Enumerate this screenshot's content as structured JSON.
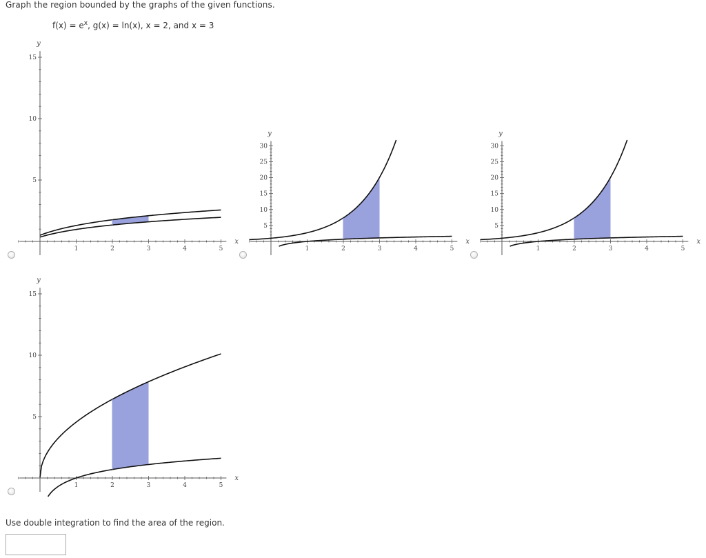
{
  "question": {
    "instruction": "Graph the region bounded by the graphs of the given functions.",
    "functions_f": "f(x) = e",
    "functions_exp": "x",
    "functions_rest": ", g(x) = ln(x), x = 2, and x = 3"
  },
  "graph_labels": {
    "x_axis": "x",
    "y_axis": "y"
  },
  "options": [
    {
      "selected": false,
      "curves": [
        "sqrt(x)+ln(x)",
        "ln(x)"
      ],
      "region_x": [
        2,
        3
      ],
      "x_ticks": [
        "1",
        "2",
        "3",
        "4",
        "5"
      ],
      "y_ticks": [
        "5",
        "10",
        "15"
      ]
    },
    {
      "selected": false,
      "curves": [
        "e^x",
        "ln(x)"
      ],
      "region_x": [
        2,
        3
      ],
      "x_ticks": [
        "1",
        "2",
        "3",
        "4",
        "5"
      ],
      "y_ticks": [
        "5",
        "10",
        "15",
        "20",
        "25",
        "30"
      ]
    },
    {
      "selected": false,
      "curves": [
        "e^x",
        "ln(x)"
      ],
      "region_x": [
        2,
        3
      ],
      "x_ticks": [
        "1",
        "2",
        "3",
        "4",
        "5"
      ],
      "y_ticks": [
        "5",
        "10",
        "15",
        "20",
        "25",
        "30"
      ]
    },
    {
      "selected": false,
      "curves": [
        "sqrt(x)*4",
        "ln(x)"
      ],
      "region_x": [
        2,
        3
      ],
      "x_ticks": [
        "1",
        "2",
        "3",
        "4",
        "5"
      ],
      "y_ticks": [
        "5",
        "10",
        "15"
      ]
    }
  ],
  "prompt": {
    "text": "Use double integration to find the area of the region.",
    "answer_value": ""
  },
  "colors": {
    "region_fill": "#9aa2dd",
    "curve": "#111111",
    "axis": "#555555"
  }
}
